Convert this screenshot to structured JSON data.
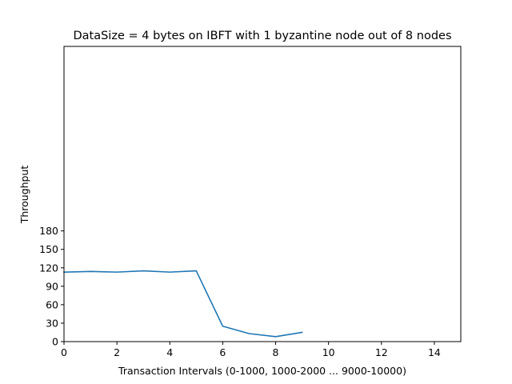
{
  "chart_data": {
    "type": "line",
    "title": "DataSize = 4 bytes on IBFT with 1 byzantine node out of 8 nodes",
    "xlabel": "Transaction Intervals (0-1000, 1000-2000 ... 9000-10000)",
    "ylabel": "Throughput",
    "xlim": [
      0,
      15
    ],
    "ylim": [
      0,
      480
    ],
    "xticks": [
      0,
      2,
      4,
      6,
      8,
      10,
      12,
      14
    ],
    "yticks": [
      0,
      30,
      60,
      90,
      120,
      150,
      180
    ],
    "grid": false,
    "x": [
      0,
      1,
      2,
      3,
      4,
      5,
      6,
      7,
      8,
      9
    ],
    "series": [
      {
        "values": [
          113,
          114,
          113,
          115,
          113,
          115,
          25,
          13,
          8,
          15
        ],
        "color": "#1f77b4"
      }
    ]
  }
}
